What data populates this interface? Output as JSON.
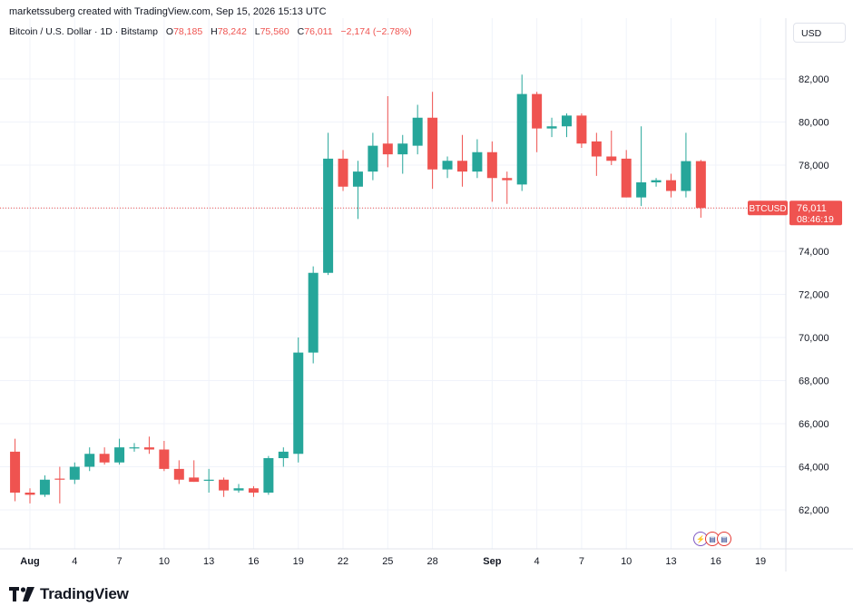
{
  "header": {
    "attribution": "marketssuberg created with TradingView.com, Sep 15, 2026 15:13 UTC"
  },
  "legend": {
    "symbol": "Bitcoin / U.S. Dollar · 1D · Bitstamp",
    "open_label": "O",
    "open": "78,185",
    "high_label": "H",
    "high": "78,242",
    "low_label": "L",
    "low": "75,560",
    "close_label": "C",
    "close": "76,011",
    "change": "−2,174 (−2.78%)"
  },
  "currency": "USD",
  "price_tag": {
    "symbol": "BTCUSD",
    "price": "76,011",
    "countdown": "08:46:19"
  },
  "brand": "TradingView",
  "colors": {
    "up": "#26a69a",
    "down": "#ef5350",
    "last_price_line": "#ef5350",
    "grid": "#f0f3fa"
  },
  "events_icons": [
    "lightning-event-icon",
    "us-flag-event-icon",
    "us-flag-event-icon"
  ],
  "chart_data": {
    "type": "candlestick",
    "ylim": [
      60500,
      83000
    ],
    "y_ticks": [
      62000,
      64000,
      66000,
      68000,
      70000,
      72000,
      74000,
      76000,
      78000,
      80000,
      82000
    ],
    "y_tick_labels": [
      "62,000",
      "64,000",
      "66,000",
      "68,000",
      "70,000",
      "72,000",
      "74,000",
      "76,000",
      "78,000",
      "80,000",
      "82,000"
    ],
    "x_tick_labels": [
      {
        "label": "Aug",
        "date": "2026-08-01"
      },
      {
        "label": "4",
        "date": "2026-08-04"
      },
      {
        "label": "7",
        "date": "2026-08-07"
      },
      {
        "label": "10",
        "date": "2026-08-10"
      },
      {
        "label": "13",
        "date": "2026-08-13"
      },
      {
        "label": "16",
        "date": "2026-08-16"
      },
      {
        "label": "19",
        "date": "2026-08-19"
      },
      {
        "label": "22",
        "date": "2026-08-22"
      },
      {
        "label": "25",
        "date": "2026-08-25"
      },
      {
        "label": "28",
        "date": "2026-08-28"
      },
      {
        "label": "Sep",
        "date": "2026-09-01"
      },
      {
        "label": "4",
        "date": "2026-09-04"
      },
      {
        "label": "7",
        "date": "2026-09-07"
      },
      {
        "label": "10",
        "date": "2026-09-10"
      },
      {
        "label": "13",
        "date": "2026-09-13"
      },
      {
        "label": "16",
        "date": "2026-09-16"
      },
      {
        "label": "19",
        "date": "2026-09-19"
      }
    ],
    "last_price": 76011,
    "candles": [
      {
        "date": "2026-07-31",
        "o": 64700,
        "h": 65300,
        "l": 62400,
        "c": 62800
      },
      {
        "date": "2026-08-01",
        "o": 62800,
        "h": 63000,
        "l": 62300,
        "c": 62700
      },
      {
        "date": "2026-08-02",
        "o": 62700,
        "h": 63600,
        "l": 62600,
        "c": 63400
      },
      {
        "date": "2026-08-03",
        "o": 63450,
        "h": 64000,
        "l": 62300,
        "c": 63400
      },
      {
        "date": "2026-08-04",
        "o": 63400,
        "h": 64200,
        "l": 63200,
        "c": 64000
      },
      {
        "date": "2026-08-05",
        "o": 64000,
        "h": 64900,
        "l": 63800,
        "c": 64600
      },
      {
        "date": "2026-08-06",
        "o": 64600,
        "h": 64900,
        "l": 64100,
        "c": 64200
      },
      {
        "date": "2026-08-07",
        "o": 64200,
        "h": 65300,
        "l": 64100,
        "c": 64900
      },
      {
        "date": "2026-08-08",
        "o": 64900,
        "h": 65100,
        "l": 64700,
        "c": 64900
      },
      {
        "date": "2026-08-09",
        "o": 64900,
        "h": 65400,
        "l": 64600,
        "c": 64800
      },
      {
        "date": "2026-08-10",
        "o": 64800,
        "h": 65200,
        "l": 63800,
        "c": 63900
      },
      {
        "date": "2026-08-11",
        "o": 63900,
        "h": 64300,
        "l": 63200,
        "c": 63400
      },
      {
        "date": "2026-08-12",
        "o": 63500,
        "h": 64300,
        "l": 63300,
        "c": 63300
      },
      {
        "date": "2026-08-13",
        "o": 63400,
        "h": 63900,
        "l": 62800,
        "c": 63400
      },
      {
        "date": "2026-08-14",
        "o": 63400,
        "h": 63500,
        "l": 62600,
        "c": 62900
      },
      {
        "date": "2026-08-15",
        "o": 62900,
        "h": 63200,
        "l": 62800,
        "c": 63000
      },
      {
        "date": "2026-08-16",
        "o": 63000,
        "h": 63100,
        "l": 62600,
        "c": 62800
      },
      {
        "date": "2026-08-17",
        "o": 62800,
        "h": 64500,
        "l": 62700,
        "c": 64400
      },
      {
        "date": "2026-08-18",
        "o": 64400,
        "h": 64900,
        "l": 64000,
        "c": 64700
      },
      {
        "date": "2026-08-19",
        "o": 64600,
        "h": 70000,
        "l": 64200,
        "c": 69300
      },
      {
        "date": "2026-08-20",
        "o": 69300,
        "h": 73300,
        "l": 68800,
        "c": 73000
      },
      {
        "date": "2026-08-21",
        "o": 73000,
        "h": 79500,
        "l": 72900,
        "c": 78300
      },
      {
        "date": "2026-08-22",
        "o": 78300,
        "h": 78700,
        "l": 76800,
        "c": 77000
      },
      {
        "date": "2026-08-23",
        "o": 77000,
        "h": 78200,
        "l": 75500,
        "c": 77700
      },
      {
        "date": "2026-08-24",
        "o": 77700,
        "h": 79500,
        "l": 77300,
        "c": 78900
      },
      {
        "date": "2026-08-25",
        "o": 79000,
        "h": 81200,
        "l": 77900,
        "c": 78500
      },
      {
        "date": "2026-08-26",
        "o": 78500,
        "h": 79400,
        "l": 77600,
        "c": 79000
      },
      {
        "date": "2026-08-27",
        "o": 78900,
        "h": 80800,
        "l": 78500,
        "c": 80200
      },
      {
        "date": "2026-08-28",
        "o": 80200,
        "h": 81400,
        "l": 76900,
        "c": 77800
      },
      {
        "date": "2026-08-29",
        "o": 77800,
        "h": 78400,
        "l": 77400,
        "c": 78200
      },
      {
        "date": "2026-08-30",
        "o": 78200,
        "h": 79400,
        "l": 77000,
        "c": 77700
      },
      {
        "date": "2026-08-31",
        "o": 77700,
        "h": 79200,
        "l": 77400,
        "c": 78600
      },
      {
        "date": "2026-09-01",
        "o": 78600,
        "h": 79100,
        "l": 76300,
        "c": 77400
      },
      {
        "date": "2026-09-02",
        "o": 77400,
        "h": 77700,
        "l": 76200,
        "c": 77300
      },
      {
        "date": "2026-09-03",
        "o": 77100,
        "h": 82200,
        "l": 76800,
        "c": 81300
      },
      {
        "date": "2026-09-04",
        "o": 81300,
        "h": 81400,
        "l": 78600,
        "c": 79700
      },
      {
        "date": "2026-09-05",
        "o": 79700,
        "h": 80200,
        "l": 79300,
        "c": 79800
      },
      {
        "date": "2026-09-06",
        "o": 79800,
        "h": 80400,
        "l": 79300,
        "c": 80300
      },
      {
        "date": "2026-09-07",
        "o": 80300,
        "h": 80400,
        "l": 78800,
        "c": 79000
      },
      {
        "date": "2026-09-08",
        "o": 79100,
        "h": 79500,
        "l": 77500,
        "c": 78400
      },
      {
        "date": "2026-09-09",
        "o": 78400,
        "h": 79600,
        "l": 78000,
        "c": 78200
      },
      {
        "date": "2026-09-10",
        "o": 78300,
        "h": 78700,
        "l": 76500,
        "c": 76500
      },
      {
        "date": "2026-09-11",
        "o": 76500,
        "h": 79800,
        "l": 76100,
        "c": 77200
      },
      {
        "date": "2026-09-12",
        "o": 77200,
        "h": 77400,
        "l": 77000,
        "c": 77300
      },
      {
        "date": "2026-09-13",
        "o": 77300,
        "h": 77600,
        "l": 76500,
        "c": 76800
      },
      {
        "date": "2026-09-14",
        "o": 76800,
        "h": 79500,
        "l": 76500,
        "c": 78185
      },
      {
        "date": "2026-09-15",
        "o": 78185,
        "h": 78242,
        "l": 75560,
        "c": 76011
      }
    ]
  }
}
